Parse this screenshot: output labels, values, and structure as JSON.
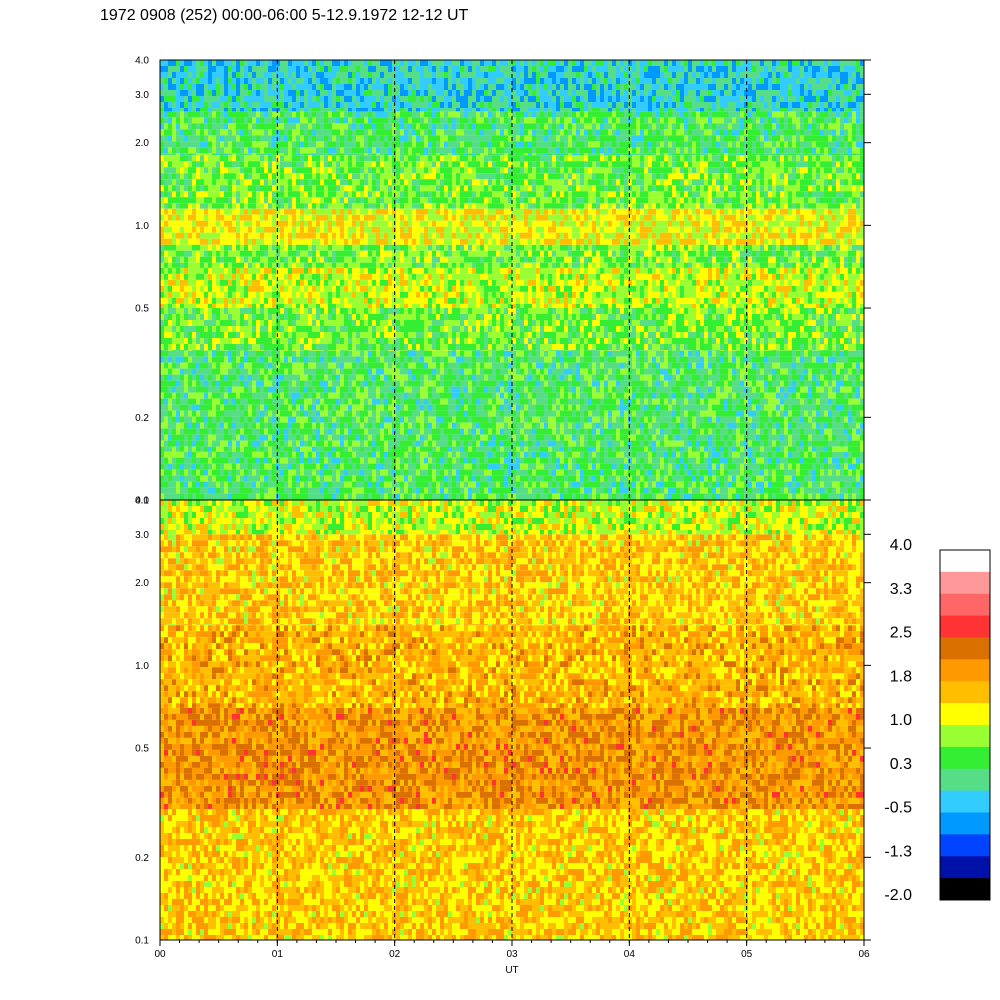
{
  "chart_data": {
    "type": "heatmap",
    "title": "1972 0908 (252) 00:00-06:00 5-12.9.1972  12-12 UT",
    "xlabel": "UT",
    "x_ticks": [
      "00",
      "01",
      "02",
      "03",
      "04",
      "05",
      "06"
    ],
    "x_range_hours": [
      0,
      6
    ],
    "y_scale": "log",
    "panels": [
      {
        "name": "upper",
        "y_range": [
          0.1,
          4.0
        ],
        "y_ticks": [
          {
            "value": 4.0,
            "label": "4.0"
          },
          {
            "value": 3.0,
            "label": "3.0"
          },
          {
            "value": 2.0,
            "label": "2.0"
          },
          {
            "value": 1.0,
            "label": "1.0"
          },
          {
            "value": 0.5,
            "label": "0.5"
          },
          {
            "value": 0.2,
            "label": "0.2"
          },
          {
            "value": 0.1,
            "label": "0.1"
          }
        ],
        "bands": [
          {
            "y_lo": 0.1,
            "y_hi": 0.15,
            "level": 0.3
          },
          {
            "y_lo": 0.15,
            "y_hi": 0.35,
            "level": 0.3
          },
          {
            "y_lo": 0.35,
            "y_hi": 0.5,
            "level": 0.6
          },
          {
            "y_lo": 0.5,
            "y_hi": 0.7,
            "level": 1.0
          },
          {
            "y_lo": 0.7,
            "y_hi": 0.85,
            "level": 0.6
          },
          {
            "y_lo": 0.85,
            "y_hi": 1.15,
            "level": 1.2
          },
          {
            "y_lo": 1.15,
            "y_hi": 1.8,
            "level": 0.6
          },
          {
            "y_lo": 1.8,
            "y_hi": 2.6,
            "level": 0.3
          },
          {
            "y_lo": 2.6,
            "y_hi": 4.0,
            "level": -0.2
          }
        ]
      },
      {
        "name": "lower",
        "y_range": [
          0.1,
          4.0
        ],
        "y_ticks": [
          {
            "value": 4.0,
            "label": "4.0"
          },
          {
            "value": 3.0,
            "label": "3.0"
          },
          {
            "value": 2.0,
            "label": "2.0"
          },
          {
            "value": 1.0,
            "label": "1.0"
          },
          {
            "value": 0.5,
            "label": "0.5"
          },
          {
            "value": 0.2,
            "label": "0.2"
          },
          {
            "value": 0.1,
            "label": "0.1"
          }
        ],
        "bands": [
          {
            "y_lo": 0.1,
            "y_hi": 0.3,
            "level": 1.5
          },
          {
            "y_lo": 0.3,
            "y_hi": 0.7,
            "level": 2.0
          },
          {
            "y_lo": 0.7,
            "y_hi": 1.4,
            "level": 1.7
          },
          {
            "y_lo": 1.4,
            "y_hi": 3.0,
            "level": 1.5
          },
          {
            "y_lo": 3.0,
            "y_hi": 4.0,
            "level": 1.0
          }
        ]
      }
    ],
    "colorbar": {
      "labels": [
        "4.0",
        "3.3",
        "2.5",
        "1.8",
        "1.0",
        "0.3",
        "-0.5",
        "-1.3",
        "-2.0"
      ],
      "colors_top_to_bottom": [
        "#ffffff",
        "#ff9999",
        "#ff6666",
        "#ff3333",
        "#d97000",
        "#ff9900",
        "#ffbf00",
        "#ffff00",
        "#99ff33",
        "#33ee33",
        "#55dd88",
        "#33ccff",
        "#0099ff",
        "#0044ff",
        "#0011aa",
        "#000000"
      ]
    }
  }
}
